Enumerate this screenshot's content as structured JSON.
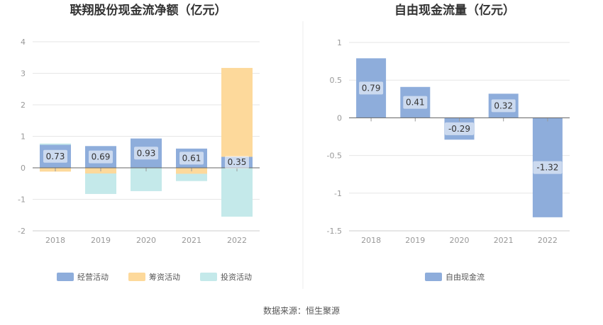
{
  "source": "数据来源：恒生聚源",
  "chart_data": [
    {
      "type": "bar",
      "stacked": true,
      "title": "联翔股份现金流净额（亿元）",
      "categories": [
        "2018",
        "2019",
        "2020",
        "2021",
        "2022"
      ],
      "ylim": [
        -2,
        4
      ],
      "yticks": [
        4,
        3,
        2,
        1,
        0,
        -1,
        -2
      ],
      "grid": true,
      "legend_position": "bottom",
      "series": [
        {
          "name": "经营活动",
          "color": "#8eaddb",
          "values": [
            0.73,
            0.69,
            0.93,
            0.61,
            0.35
          ]
        },
        {
          "name": "筹资活动",
          "color": "#fdd99b",
          "values": [
            -0.12,
            -0.18,
            0,
            -0.19,
            2.82
          ]
        },
        {
          "name": "投资活动",
          "color": "#c4e9ea",
          "values": [
            0.04,
            -0.65,
            -0.74,
            -0.23,
            -1.55
          ]
        }
      ],
      "data_labels": [
        "0.73",
        "0.69",
        "0.93",
        "0.61",
        "0.35"
      ]
    },
    {
      "type": "bar",
      "title": "自由现金流量（亿元）",
      "categories": [
        "2018",
        "2019",
        "2020",
        "2021",
        "2022"
      ],
      "ylim": [
        -1.5,
        1
      ],
      "yticks": [
        1,
        0.5,
        0,
        -0.5,
        -1,
        -1.5
      ],
      "grid": true,
      "legend_position": "bottom",
      "series": [
        {
          "name": "自由现金流",
          "color": "#8eaddb",
          "values": [
            0.79,
            0.41,
            -0.29,
            0.32,
            -1.32
          ]
        }
      ],
      "data_labels": [
        "0.79",
        "0.41",
        "-0.29",
        "0.32",
        "-1.32"
      ]
    }
  ]
}
